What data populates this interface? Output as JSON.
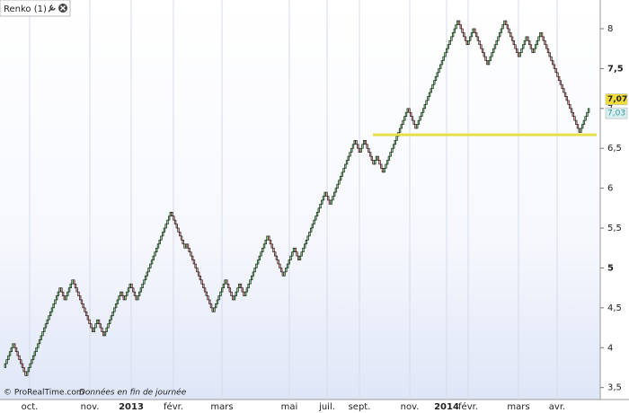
{
  "chart_data": {
    "type": "renko",
    "title": "Renko (1)",
    "footer": "© ProRealTime.com",
    "footer_note": "Données en fin de journée",
    "brick_size": 0.05,
    "up_color": "#7fd07f",
    "down_color": "#e79a9a",
    "values": [
      3.75,
      4.05,
      3.65,
      4.75,
      4.6,
      4.85,
      4.2,
      4.35,
      4.15,
      4.7,
      4.6,
      4.8,
      4.6,
      5.7,
      5.25,
      5.3,
      4.45,
      4.85,
      4.6,
      4.8,
      4.65,
      5.4,
      4.9,
      5.25,
      5.1,
      5.95,
      5.8,
      6.6,
      6.45,
      6.6,
      6.3,
      6.4,
      6.2,
      7.0,
      6.75,
      8.1,
      7.8,
      8.0,
      7.55,
      8.1,
      7.65,
      7.9,
      7.7,
      7.95,
      6.7,
      7.0
    ],
    "x_labels": [
      "oct.",
      "nov.",
      "2013",
      "févr.",
      "mars",
      "mai",
      "juil.",
      "sept.",
      "nov.",
      "2014",
      "févr.",
      "mars",
      "avr."
    ],
    "ylim": [
      3.35,
      8.36
    ],
    "yticks": [
      {
        "value": 3.5,
        "label": "3,5"
      },
      4,
      {
        "value": 4.5,
        "label": "4,5"
      },
      5,
      {
        "value": 5.5,
        "label": "5,5"
      },
      6,
      {
        "value": 6.5,
        "label": "6,5"
      },
      7,
      {
        "value": 7.5,
        "label": "7,5"
      },
      8
    ],
    "support_line": {
      "value": 6.67,
      "color": "#e8e04a"
    },
    "price_tags": [
      {
        "value": 7.07,
        "label": "7,07",
        "color": "#f2dc3a"
      },
      {
        "value": 7.03,
        "label": "7,03",
        "color": "#d8eef0"
      }
    ]
  }
}
